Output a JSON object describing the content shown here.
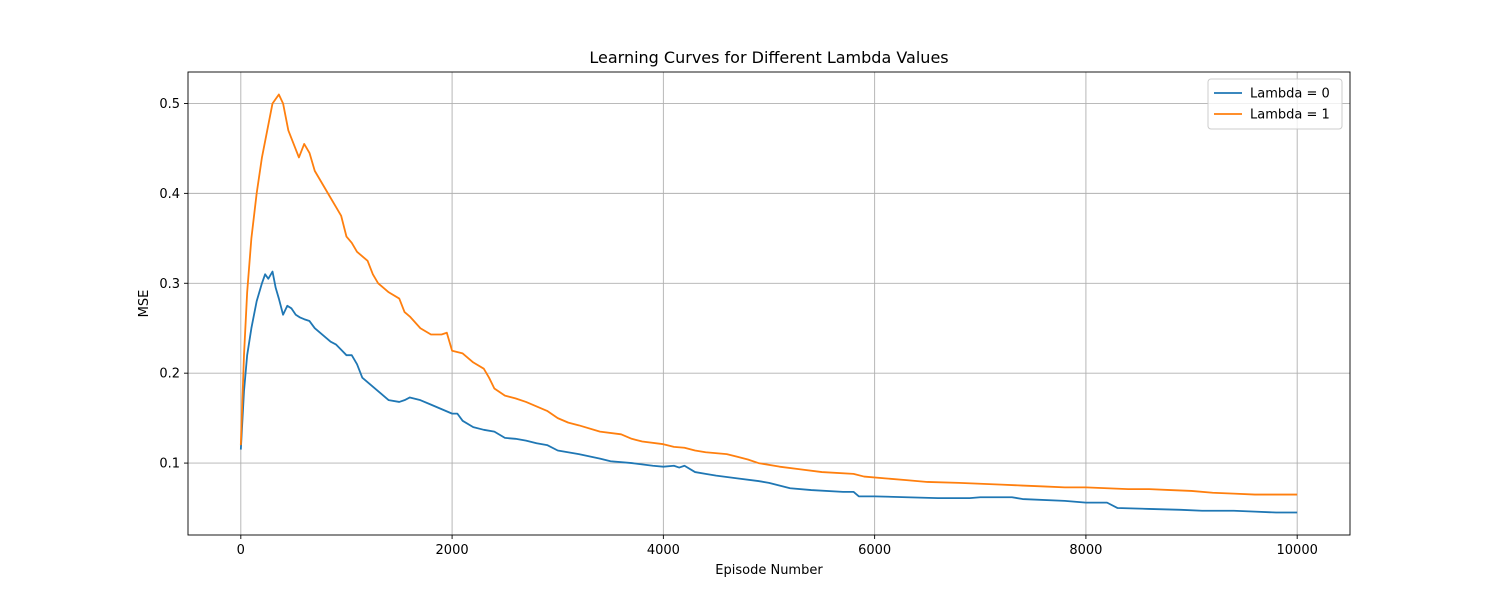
{
  "chart_data": {
    "type": "line",
    "title": "Learning Curves for Different Lambda Values",
    "xlabel": "Episode Number",
    "ylabel": "MSE",
    "xlim": [
      -500,
      10500
    ],
    "ylim": [
      0.02,
      0.535
    ],
    "xticks": [
      0,
      2000,
      4000,
      6000,
      8000,
      10000
    ],
    "yticks": [
      0.1,
      0.2,
      0.3,
      0.4,
      0.5
    ],
    "ytick_labels": [
      "0.1",
      "0.2",
      "0.3",
      "0.4",
      "0.5"
    ],
    "grid": true,
    "legend_position": "top-right",
    "series": [
      {
        "name": "Lambda = 0",
        "color": "#1f77b4",
        "points": [
          [
            0,
            0.115
          ],
          [
            30,
            0.18
          ],
          [
            60,
            0.22
          ],
          [
            100,
            0.25
          ],
          [
            150,
            0.28
          ],
          [
            200,
            0.3
          ],
          [
            230,
            0.31
          ],
          [
            260,
            0.305
          ],
          [
            300,
            0.313
          ],
          [
            330,
            0.295
          ],
          [
            360,
            0.283
          ],
          [
            400,
            0.265
          ],
          [
            440,
            0.275
          ],
          [
            480,
            0.272
          ],
          [
            520,
            0.265
          ],
          [
            560,
            0.262
          ],
          [
            600,
            0.26
          ],
          [
            650,
            0.258
          ],
          [
            700,
            0.25
          ],
          [
            750,
            0.245
          ],
          [
            800,
            0.24
          ],
          [
            850,
            0.235
          ],
          [
            900,
            0.232
          ],
          [
            950,
            0.226
          ],
          [
            1000,
            0.22
          ],
          [
            1050,
            0.22
          ],
          [
            1100,
            0.21
          ],
          [
            1150,
            0.195
          ],
          [
            1200,
            0.19
          ],
          [
            1300,
            0.18
          ],
          [
            1350,
            0.175
          ],
          [
            1400,
            0.17
          ],
          [
            1500,
            0.168
          ],
          [
            1550,
            0.17
          ],
          [
            1600,
            0.173
          ],
          [
            1700,
            0.17
          ],
          [
            1800,
            0.165
          ],
          [
            1900,
            0.16
          ],
          [
            2000,
            0.155
          ],
          [
            2050,
            0.155
          ],
          [
            2100,
            0.147
          ],
          [
            2200,
            0.14
          ],
          [
            2300,
            0.137
          ],
          [
            2400,
            0.135
          ],
          [
            2500,
            0.128
          ],
          [
            2600,
            0.127
          ],
          [
            2700,
            0.125
          ],
          [
            2800,
            0.122
          ],
          [
            2900,
            0.12
          ],
          [
            3000,
            0.114
          ],
          [
            3200,
            0.11
          ],
          [
            3400,
            0.105
          ],
          [
            3500,
            0.102
          ],
          [
            3700,
            0.1
          ],
          [
            3900,
            0.097
          ],
          [
            4000,
            0.096
          ],
          [
            4100,
            0.097
          ],
          [
            4150,
            0.095
          ],
          [
            4200,
            0.097
          ],
          [
            4300,
            0.09
          ],
          [
            4400,
            0.088
          ],
          [
            4500,
            0.086
          ],
          [
            4700,
            0.083
          ],
          [
            4900,
            0.08
          ],
          [
            5000,
            0.078
          ],
          [
            5200,
            0.072
          ],
          [
            5400,
            0.07
          ],
          [
            5700,
            0.068
          ],
          [
            5800,
            0.068
          ],
          [
            5850,
            0.063
          ],
          [
            6000,
            0.063
          ],
          [
            6300,
            0.062
          ],
          [
            6600,
            0.061
          ],
          [
            6900,
            0.061
          ],
          [
            7000,
            0.062
          ],
          [
            7300,
            0.062
          ],
          [
            7400,
            0.06
          ],
          [
            7800,
            0.058
          ],
          [
            8000,
            0.056
          ],
          [
            8200,
            0.056
          ],
          [
            8300,
            0.05
          ],
          [
            8600,
            0.049
          ],
          [
            8900,
            0.048
          ],
          [
            9100,
            0.047
          ],
          [
            9400,
            0.047
          ],
          [
            9600,
            0.046
          ],
          [
            9800,
            0.045
          ],
          [
            10000,
            0.045
          ]
        ]
      },
      {
        "name": "Lambda = 1",
        "color": "#ff7f0e",
        "points": [
          [
            0,
            0.12
          ],
          [
            30,
            0.22
          ],
          [
            60,
            0.29
          ],
          [
            100,
            0.35
          ],
          [
            150,
            0.4
          ],
          [
            200,
            0.44
          ],
          [
            250,
            0.47
          ],
          [
            300,
            0.5
          ],
          [
            330,
            0.505
          ],
          [
            360,
            0.51
          ],
          [
            400,
            0.5
          ],
          [
            450,
            0.47
          ],
          [
            500,
            0.455
          ],
          [
            550,
            0.44
          ],
          [
            600,
            0.455
          ],
          [
            650,
            0.445
          ],
          [
            700,
            0.425
          ],
          [
            750,
            0.415
          ],
          [
            800,
            0.405
          ],
          [
            850,
            0.395
          ],
          [
            900,
            0.385
          ],
          [
            950,
            0.375
          ],
          [
            1000,
            0.352
          ],
          [
            1050,
            0.345
          ],
          [
            1100,
            0.335
          ],
          [
            1200,
            0.325
          ],
          [
            1250,
            0.31
          ],
          [
            1300,
            0.3
          ],
          [
            1400,
            0.29
          ],
          [
            1500,
            0.283
          ],
          [
            1550,
            0.268
          ],
          [
            1600,
            0.263
          ],
          [
            1700,
            0.25
          ],
          [
            1800,
            0.243
          ],
          [
            1900,
            0.243
          ],
          [
            1950,
            0.245
          ],
          [
            2000,
            0.225
          ],
          [
            2100,
            0.222
          ],
          [
            2200,
            0.212
          ],
          [
            2300,
            0.205
          ],
          [
            2350,
            0.195
          ],
          [
            2400,
            0.183
          ],
          [
            2500,
            0.175
          ],
          [
            2600,
            0.172
          ],
          [
            2700,
            0.168
          ],
          [
            2800,
            0.163
          ],
          [
            2900,
            0.158
          ],
          [
            3000,
            0.15
          ],
          [
            3100,
            0.145
          ],
          [
            3200,
            0.142
          ],
          [
            3400,
            0.135
          ],
          [
            3600,
            0.132
          ],
          [
            3700,
            0.127
          ],
          [
            3800,
            0.124
          ],
          [
            4000,
            0.121
          ],
          [
            4100,
            0.118
          ],
          [
            4200,
            0.117
          ],
          [
            4300,
            0.114
          ],
          [
            4400,
            0.112
          ],
          [
            4600,
            0.11
          ],
          [
            4700,
            0.107
          ],
          [
            4800,
            0.104
          ],
          [
            4900,
            0.1
          ],
          [
            5100,
            0.096
          ],
          [
            5300,
            0.093
          ],
          [
            5500,
            0.09
          ],
          [
            5800,
            0.088
          ],
          [
            5900,
            0.085
          ],
          [
            6100,
            0.083
          ],
          [
            6300,
            0.081
          ],
          [
            6500,
            0.079
          ],
          [
            6800,
            0.078
          ],
          [
            7000,
            0.077
          ],
          [
            7200,
            0.076
          ],
          [
            7400,
            0.075
          ],
          [
            7600,
            0.074
          ],
          [
            7800,
            0.073
          ],
          [
            8000,
            0.073
          ],
          [
            8200,
            0.072
          ],
          [
            8400,
            0.071
          ],
          [
            8600,
            0.071
          ],
          [
            8800,
            0.07
          ],
          [
            9000,
            0.069
          ],
          [
            9200,
            0.067
          ],
          [
            9400,
            0.066
          ],
          [
            9600,
            0.065
          ],
          [
            9800,
            0.065
          ],
          [
            10000,
            0.065
          ]
        ]
      }
    ]
  }
}
